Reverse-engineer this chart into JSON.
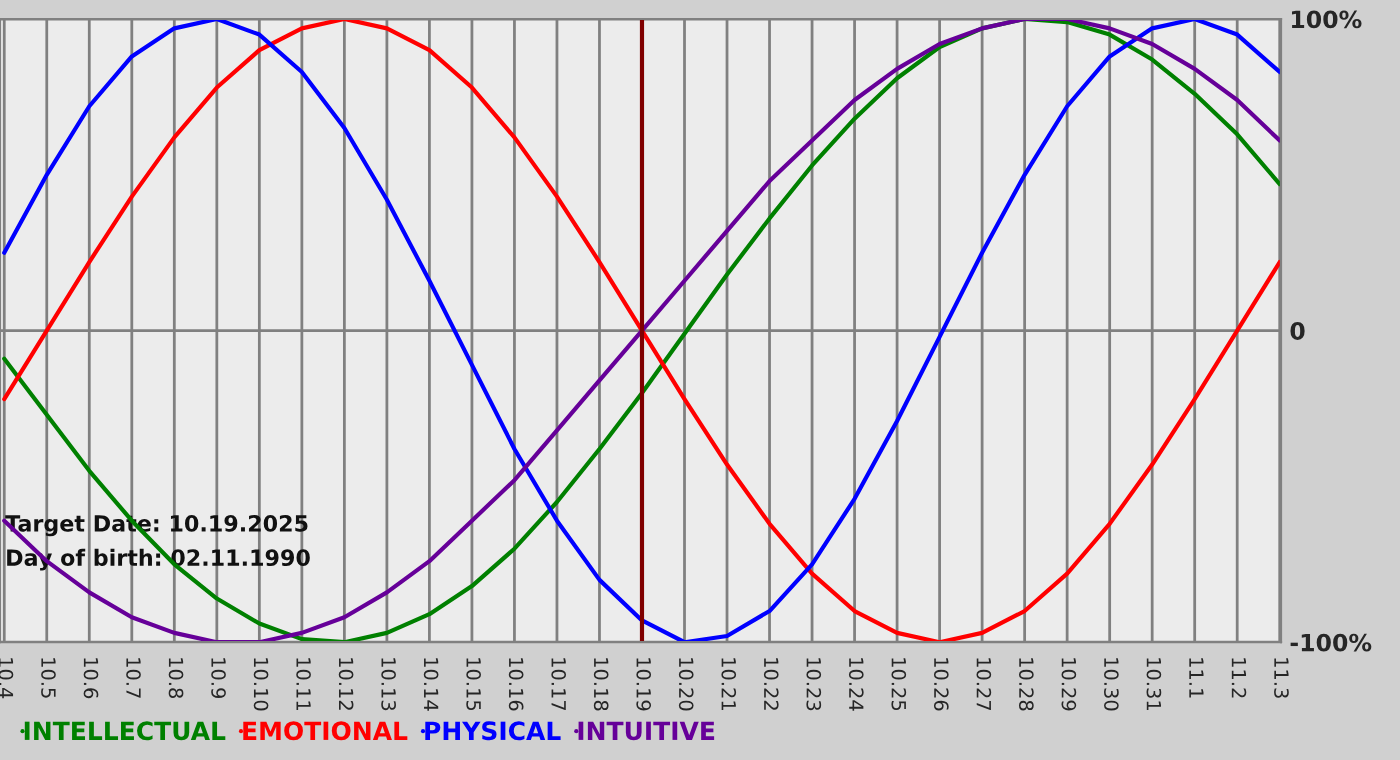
{
  "chart_data": {
    "type": "line",
    "categories": [
      "10.4",
      "10.5",
      "10.6",
      "10.7",
      "10.8",
      "10.9",
      "10.10",
      "10.11",
      "10.12",
      "10.13",
      "10.14",
      "10.15",
      "10.16",
      "10.17",
      "10.18",
      "10.19",
      "10.20",
      "10.21",
      "10.22",
      "10.23",
      "10.24",
      "10.25",
      "10.26",
      "10.27",
      "10.28",
      "10.29",
      "10.30",
      "10.31",
      "11.1",
      "11.2",
      "11.3"
    ],
    "series": [
      {
        "name": "INTELLECTUAL",
        "color": "#008000",
        "values": [
          -9,
          -27,
          -45,
          -61,
          -75,
          -86,
          -94,
          -99,
          -100,
          -97,
          -91,
          -82,
          -70,
          -55,
          -38,
          -20,
          -1,
          18,
          36,
          53,
          68,
          81,
          91,
          97,
          100,
          99,
          95,
          87,
          76,
          63,
          47
        ]
      },
      {
        "name": "EMOTIONAL",
        "color": "#ff0000",
        "values": [
          -22,
          0,
          22,
          43,
          62,
          78,
          90,
          97,
          100,
          97,
          90,
          78,
          62,
          43,
          22,
          0,
          -22,
          -43,
          -62,
          -78,
          -90,
          -97,
          -100,
          -97,
          -90,
          -78,
          -62,
          -43,
          -22,
          0,
          22
        ]
      },
      {
        "name": "PHYSICAL",
        "color": "#0000ff",
        "values": [
          25,
          50,
          72,
          88,
          97,
          100,
          95,
          83,
          65,
          42,
          16,
          -11,
          -38,
          -61,
          -80,
          -93,
          -100,
          -98,
          -90,
          -75,
          -54,
          -29,
          -2,
          25,
          50,
          72,
          88,
          97,
          100,
          95,
          83
        ]
      },
      {
        "name": "INTUITIVE",
        "color": "#660099",
        "values": [
          -61,
          -74,
          -84,
          -92,
          -97,
          -100,
          -100,
          -97,
          -92,
          -84,
          -74,
          -61,
          -48,
          -32,
          -16,
          0,
          16,
          32,
          48,
          61,
          74,
          84,
          92,
          97,
          100,
          100,
          97,
          92,
          84,
          74,
          61
        ]
      }
    ],
    "ylim": [
      -100,
      100
    ],
    "yticks": [
      {
        "value": 100,
        "label": "100%"
      },
      0,
      {
        "value": -100,
        "label": "-100%"
      }
    ],
    "ref_lines": [
      {
        "axis": "x",
        "value": "10.19",
        "color": "#800000"
      }
    ],
    "annotations": [
      "Target Date: 10.19.2025",
      "Day of birth: 02.11.1990"
    ],
    "grid": true,
    "legend": "bottom",
    "line_style": "solid",
    "marker": "none"
  }
}
